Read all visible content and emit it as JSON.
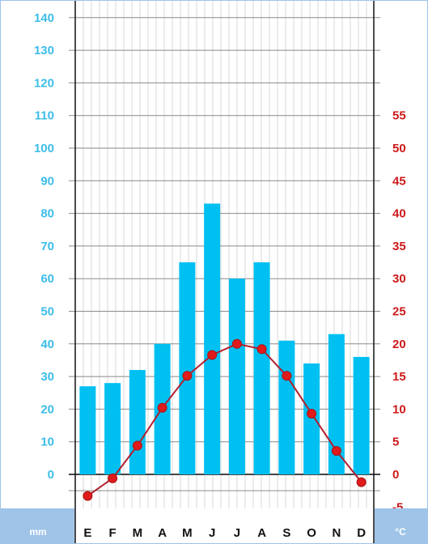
{
  "chart_data": {
    "type": "bar+line",
    "title": "",
    "categories": [
      "E",
      "F",
      "M",
      "A",
      "M",
      "J",
      "J",
      "A",
      "S",
      "O",
      "N",
      "D"
    ],
    "series": [
      {
        "type": "bar",
        "axis": "left",
        "values": [
          27,
          28,
          32,
          40,
          65,
          83,
          60,
          65,
          41,
          34,
          43,
          36
        ]
      },
      {
        "type": "line",
        "axis": "right",
        "values": [
          -3.3,
          -0.6,
          4.4,
          10.2,
          15.1,
          18.3,
          20,
          19.2,
          15.1,
          9.3,
          3.6,
          -1.2
        ]
      }
    ],
    "left_axis": {
      "unit": "mm",
      "range": [
        -5,
        140
      ],
      "ticks": [
        "0",
        "10",
        "20",
        "30",
        "40",
        "50",
        "60",
        "70",
        "80",
        "90",
        "100",
        "110",
        "120",
        "130",
        "140"
      ]
    },
    "right_axis": {
      "unit": "°C",
      "range": [
        -5,
        60
      ],
      "ticks": [
        "-5",
        "0",
        "5",
        "10",
        "15",
        "20",
        "25",
        "30",
        "35",
        "40",
        "45",
        "50",
        "55"
      ]
    },
    "grid": true,
    "legend": "none"
  },
  "colors": {
    "bars": "#00c0f2",
    "line": "#b41f2d",
    "markers": "#e01b1b",
    "left_ticks": "#3dbde8",
    "right_ticks": "#cc1a1a",
    "footer": "#9fc4e8"
  }
}
